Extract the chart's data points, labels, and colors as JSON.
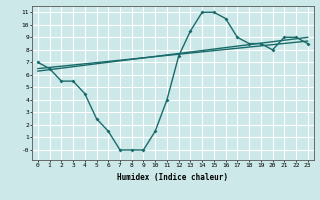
{
  "xlabel": "Humidex (Indice chaleur)",
  "ylabel": "",
  "bg_color": "#cce8e8",
  "grid_color": "#ffffff",
  "line_color": "#1a6b6b",
  "xlim": [
    -0.5,
    23.5
  ],
  "ylim": [
    -0.8,
    11.5
  ],
  "xticks": [
    0,
    1,
    2,
    3,
    4,
    5,
    6,
    7,
    8,
    9,
    10,
    11,
    12,
    13,
    14,
    15,
    16,
    17,
    18,
    19,
    20,
    21,
    22,
    23
  ],
  "yticks": [
    0,
    1,
    2,
    3,
    4,
    5,
    6,
    7,
    8,
    9,
    10,
    11
  ],
  "ytick_labels": [
    "-0",
    "1",
    "2",
    "3",
    "4",
    "5",
    "6",
    "7",
    "8",
    "9",
    "10",
    "11"
  ],
  "series1_x": [
    0,
    1,
    2,
    3,
    4,
    5,
    6,
    7,
    8,
    9,
    10,
    11,
    12,
    13,
    14,
    15,
    16,
    17,
    18,
    19,
    20,
    21,
    22,
    23
  ],
  "series1_y": [
    7.0,
    6.5,
    5.5,
    5.5,
    4.5,
    2.5,
    1.5,
    0.0,
    0.0,
    0.0,
    1.5,
    4.0,
    7.5,
    9.5,
    11.0,
    11.0,
    10.5,
    9.0,
    8.5,
    8.5,
    8.0,
    9.0,
    9.0,
    8.5
  ],
  "series2_x": [
    0,
    23
  ],
  "series2_y": [
    6.5,
    8.7
  ],
  "series3_x": [
    0,
    23
  ],
  "series3_y": [
    6.3,
    9.0
  ]
}
